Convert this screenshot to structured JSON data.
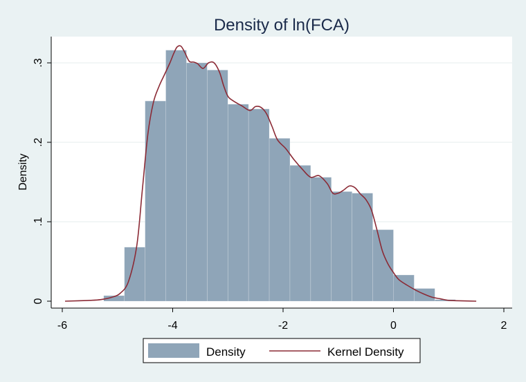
{
  "chart_data": {
    "type": "bar",
    "title": "Density of ln(FCA)",
    "xlabel": "",
    "ylabel": "Density",
    "xlim": [
      -6,
      2
    ],
    "ylim": [
      0,
      0.33
    ],
    "x_ticks": [
      -6,
      -4,
      -2,
      0,
      2
    ],
    "x_tick_labels": [
      "-6",
      "-4",
      "-2",
      "0",
      "2"
    ],
    "y_ticks": [
      0,
      0.1,
      0.2,
      0.3
    ],
    "y_tick_labels": [
      "0",
      ".1",
      ".2",
      ".3"
    ],
    "grid": "horizontal",
    "legend_position": "bottom",
    "colors": {
      "background": "#eaf2f3",
      "plot": "#ffffff",
      "bars": "#8fa5b8",
      "kernel": "#8b2a35",
      "grid": "#e6ecee"
    },
    "series": [
      {
        "name": "Density",
        "type": "histogram",
        "bin_width": 0.375,
        "bins": [
          {
            "x0": -5.25,
            "x1": -4.875,
            "value": 0.007
          },
          {
            "x0": -4.875,
            "x1": -4.5,
            "value": 0.068
          },
          {
            "x0": -4.5,
            "x1": -4.125,
            "value": 0.252
          },
          {
            "x0": -4.125,
            "x1": -3.75,
            "value": 0.316
          },
          {
            "x0": -3.75,
            "x1": -3.375,
            "value": 0.3
          },
          {
            "x0": -3.375,
            "x1": -3.0,
            "value": 0.291
          },
          {
            "x0": -3.0,
            "x1": -2.625,
            "value": 0.248
          },
          {
            "x0": -2.625,
            "x1": -2.25,
            "value": 0.242
          },
          {
            "x0": -2.25,
            "x1": -1.875,
            "value": 0.205
          },
          {
            "x0": -1.875,
            "x1": -1.5,
            "value": 0.171
          },
          {
            "x0": -1.5,
            "x1": -1.125,
            "value": 0.156
          },
          {
            "x0": -1.125,
            "x1": -0.75,
            "value": 0.138
          },
          {
            "x0": -0.75,
            "x1": -0.375,
            "value": 0.136
          },
          {
            "x0": -0.375,
            "x1": 0.0,
            "value": 0.09
          },
          {
            "x0": 0.0,
            "x1": 0.375,
            "value": 0.033
          },
          {
            "x0": 0.375,
            "x1": 0.75,
            "value": 0.016
          },
          {
            "x0": 0.75,
            "x1": 1.125,
            "value": 0.002
          }
        ]
      },
      {
        "name": "Kernel Density",
        "type": "line",
        "x": [
          -5.95,
          -5.5,
          -5.3,
          -5.1,
          -4.95,
          -4.8,
          -4.65,
          -4.55,
          -4.45,
          -4.35,
          -4.25,
          -4.15,
          -4.05,
          -3.98,
          -3.92,
          -3.85,
          -3.78,
          -3.7,
          -3.62,
          -3.55,
          -3.45,
          -3.35,
          -3.25,
          -3.15,
          -3.08,
          -3.0,
          -2.9,
          -2.75,
          -2.6,
          -2.5,
          -2.4,
          -2.3,
          -2.2,
          -2.1,
          -1.95,
          -1.8,
          -1.65,
          -1.5,
          -1.35,
          -1.2,
          -1.1,
          -1.0,
          -0.9,
          -0.8,
          -0.7,
          -0.6,
          -0.5,
          -0.4,
          -0.3,
          -0.2,
          -0.1,
          0.0,
          0.1,
          0.25,
          0.4,
          0.55,
          0.7,
          0.85,
          1.0,
          1.2,
          1.5
        ],
        "y": [
          0.0,
          0.001,
          0.002,
          0.005,
          0.01,
          0.025,
          0.07,
          0.14,
          0.21,
          0.25,
          0.27,
          0.285,
          0.3,
          0.312,
          0.32,
          0.321,
          0.313,
          0.302,
          0.301,
          0.299,
          0.293,
          0.3,
          0.3,
          0.288,
          0.272,
          0.258,
          0.252,
          0.246,
          0.24,
          0.245,
          0.244,
          0.236,
          0.22,
          0.203,
          0.192,
          0.178,
          0.166,
          0.156,
          0.158,
          0.148,
          0.136,
          0.136,
          0.14,
          0.145,
          0.143,
          0.135,
          0.128,
          0.115,
          0.09,
          0.063,
          0.047,
          0.036,
          0.027,
          0.02,
          0.014,
          0.009,
          0.005,
          0.003,
          0.001,
          0.0005,
          0.0
        ]
      }
    ]
  }
}
